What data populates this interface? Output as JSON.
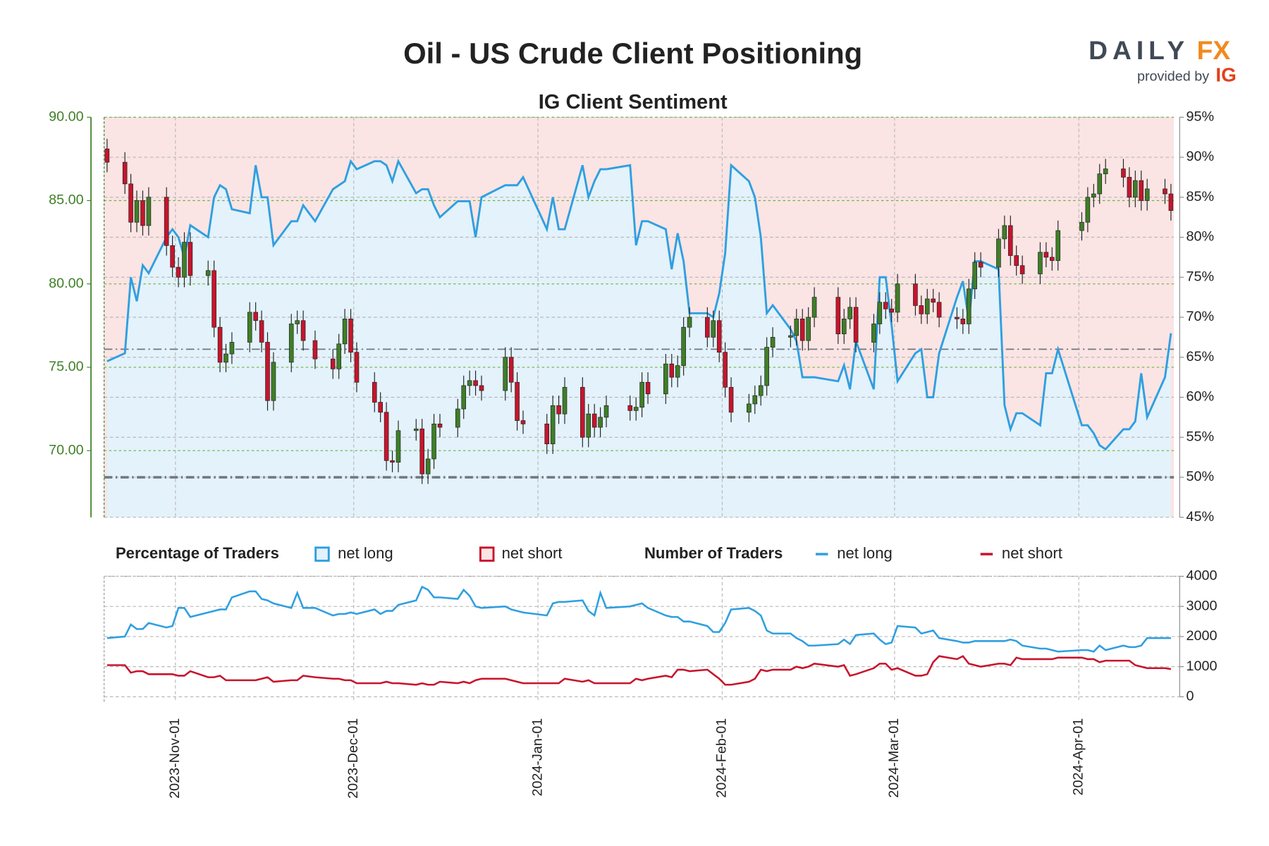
{
  "chart_data": [
    {
      "type": "candlestick",
      "title": "Oil - US Crude Client Positioning",
      "subtitle": "IG Client Sentiment",
      "logo": {
        "name": "DAILY",
        "accent": "FX",
        "tagline": "provided by",
        "brand": "IG"
      },
      "x": [
        "2023-10-20",
        "2023-10-23",
        "2023-10-24",
        "2023-10-25",
        "2023-10-26",
        "2023-10-27",
        "2023-10-30",
        "2023-10-31",
        "2023-11-01",
        "2023-11-02",
        "2023-11-03",
        "2023-11-06",
        "2023-11-07",
        "2023-11-08",
        "2023-11-09",
        "2023-11-10",
        "2023-11-13",
        "2023-11-14",
        "2023-11-15",
        "2023-11-16",
        "2023-11-17",
        "2023-11-20",
        "2023-11-21",
        "2023-11-22",
        "2023-11-24",
        "2023-11-27",
        "2023-11-28",
        "2023-11-29",
        "2023-11-30",
        "2023-12-01",
        "2023-12-04",
        "2023-12-05",
        "2023-12-06",
        "2023-12-07",
        "2023-12-08",
        "2023-12-11",
        "2023-12-12",
        "2023-12-13",
        "2023-12-14",
        "2023-12-15",
        "2023-12-18",
        "2023-12-19",
        "2023-12-20",
        "2023-12-21",
        "2023-12-22",
        "2023-12-26",
        "2023-12-27",
        "2023-12-28",
        "2023-12-29",
        "2024-01-02",
        "2024-01-03",
        "2024-01-04",
        "2024-01-05",
        "2024-01-08",
        "2024-01-09",
        "2024-01-10",
        "2024-01-11",
        "2024-01-12",
        "2024-01-16",
        "2024-01-17",
        "2024-01-18",
        "2024-01-19",
        "2024-01-22",
        "2024-01-23",
        "2024-01-24",
        "2024-01-25",
        "2024-01-26",
        "2024-01-29",
        "2024-01-30",
        "2024-01-31",
        "2024-02-01",
        "2024-02-02",
        "2024-02-05",
        "2024-02-06",
        "2024-02-07",
        "2024-02-08",
        "2024-02-09",
        "2024-02-12",
        "2024-02-13",
        "2024-02-14",
        "2024-02-15",
        "2024-02-16",
        "2024-02-20",
        "2024-02-21",
        "2024-02-22",
        "2024-02-23",
        "2024-02-26",
        "2024-02-27",
        "2024-02-28",
        "2024-02-29",
        "2024-03-01",
        "2024-03-04",
        "2024-03-05",
        "2024-03-06",
        "2024-03-07",
        "2024-03-08",
        "2024-03-11",
        "2024-03-12",
        "2024-03-13",
        "2024-03-14",
        "2024-03-15",
        "2024-03-18",
        "2024-03-19",
        "2024-03-20",
        "2024-03-21",
        "2024-03-22",
        "2024-03-25",
        "2024-03-26",
        "2024-03-27",
        "2024-03-28",
        "2024-04-01",
        "2024-04-02",
        "2024-04-03",
        "2024-04-04",
        "2024-04-05",
        "2024-04-08",
        "2024-04-09",
        "2024-04-10",
        "2024-04-11",
        "2024-04-12",
        "2024-04-15",
        "2024-04-16"
      ],
      "open": [
        88.1,
        87.3,
        86.0,
        83.7,
        85.0,
        83.5,
        85.2,
        82.3,
        81.0,
        80.4,
        82.5,
        80.5,
        80.8,
        77.4,
        75.3,
        75.8,
        76.5,
        78.3,
        77.8,
        76.5,
        73.0,
        75.3,
        77.6,
        77.8,
        76.6,
        75.5,
        74.9,
        76.4,
        77.9,
        75.9,
        74.1,
        72.9,
        72.3,
        69.4,
        69.3,
        71.2,
        71.3,
        68.6,
        69.5,
        71.6,
        71.4,
        72.5,
        73.9,
        74.2,
        73.9,
        73.6,
        75.6,
        74.1,
        71.8,
        71.6,
        70.4,
        72.7,
        72.2,
        73.8,
        70.8,
        72.2,
        71.4,
        72.0,
        72.7,
        72.4,
        72.6,
        74.1,
        73.4,
        75.2,
        74.4,
        75.1,
        77.4,
        78.0,
        76.8,
        77.8,
        75.9,
        73.8,
        72.3,
        72.8,
        73.3,
        73.9,
        76.2,
        76.8,
        76.9,
        77.9,
        76.6,
        78.0,
        79.2,
        77.0,
        77.9,
        78.6,
        76.5,
        77.6,
        78.9,
        78.5,
        78.3,
        80.0,
        78.7,
        78.2,
        79.1,
        78.9,
        78.0,
        77.9,
        77.6,
        79.7,
        81.3,
        81.0,
        82.7,
        83.5,
        81.7,
        81.1,
        80.6,
        81.9,
        81.6,
        81.4,
        83.2,
        83.7,
        85.2,
        85.4,
        86.6,
        86.9,
        86.4,
        85.2,
        86.2,
        85.0,
        85.7,
        85.4
      ],
      "high": [
        88.7,
        87.9,
        86.6,
        85.6,
        85.6,
        85.8,
        85.8,
        82.9,
        81.6,
        83.1,
        83.1,
        81.4,
        81.4,
        78.0,
        76.4,
        77.1,
        78.9,
        78.9,
        78.4,
        77.1,
        75.9,
        78.2,
        78.4,
        78.4,
        77.2,
        76.1,
        77.0,
        78.5,
        78.5,
        76.5,
        74.7,
        73.5,
        72.9,
        70.0,
        71.8,
        71.9,
        71.9,
        70.1,
        72.2,
        72.2,
        73.1,
        74.5,
        74.8,
        74.8,
        74.5,
        76.2,
        76.2,
        74.7,
        72.4,
        72.2,
        73.3,
        73.3,
        74.4,
        74.4,
        72.8,
        72.8,
        72.6,
        73.3,
        73.3,
        73.2,
        74.7,
        74.7,
        75.8,
        75.8,
        75.7,
        78.0,
        78.6,
        78.6,
        78.4,
        78.4,
        76.5,
        74.4,
        73.4,
        73.9,
        74.5,
        76.8,
        77.4,
        77.5,
        78.5,
        78.5,
        78.6,
        79.8,
        79.8,
        78.5,
        79.2,
        79.2,
        78.2,
        79.5,
        79.5,
        79.1,
        80.6,
        80.6,
        79.3,
        79.7,
        79.7,
        79.5,
        78.6,
        78.5,
        80.3,
        81.9,
        81.9,
        83.3,
        84.1,
        84.1,
        82.3,
        81.7,
        82.5,
        82.5,
        82.2,
        83.8,
        84.3,
        85.8,
        86.0,
        87.2,
        87.5,
        87.5,
        87.0,
        86.8,
        86.8,
        86.3,
        86.3,
        86.0
      ],
      "low": [
        86.7,
        85.4,
        83.1,
        83.1,
        82.9,
        82.9,
        81.7,
        80.4,
        79.8,
        79.8,
        79.9,
        79.9,
        76.8,
        74.7,
        74.7,
        75.2,
        75.9,
        77.2,
        75.9,
        72.4,
        72.4,
        74.7,
        77.0,
        76.0,
        74.9,
        74.3,
        74.3,
        75.8,
        75.3,
        73.5,
        72.3,
        71.7,
        68.8,
        68.7,
        68.7,
        70.6,
        68.0,
        68.0,
        68.9,
        70.8,
        70.8,
        71.9,
        73.3,
        73.3,
        73.0,
        73.0,
        73.5,
        71.2,
        71.0,
        69.8,
        69.8,
        71.6,
        71.6,
        70.2,
        70.2,
        70.8,
        70.8,
        71.4,
        71.8,
        71.8,
        72.0,
        72.8,
        72.8,
        73.8,
        73.8,
        74.5,
        76.8,
        76.2,
        76.2,
        75.3,
        73.2,
        71.7,
        71.7,
        72.2,
        72.7,
        73.3,
        75.6,
        76.2,
        76.3,
        76.0,
        76.0,
        77.4,
        76.4,
        76.4,
        77.3,
        75.9,
        75.9,
        77.0,
        77.9,
        77.7,
        77.7,
        78.1,
        77.6,
        77.6,
        78.3,
        77.4,
        77.3,
        77.0,
        77.0,
        79.1,
        80.4,
        80.4,
        82.1,
        81.1,
        80.5,
        80.0,
        80.0,
        81.0,
        80.8,
        80.8,
        82.6,
        83.1,
        84.6,
        84.8,
        86.0,
        85.8,
        84.6,
        84.6,
        84.4,
        84.4,
        84.8,
        83.8
      ],
      "close": [
        87.3,
        86.0,
        83.7,
        85.0,
        83.5,
        85.2,
        82.3,
        81.0,
        80.4,
        82.5,
        80.5,
        80.8,
        77.4,
        75.3,
        75.8,
        76.5,
        78.3,
        77.8,
        76.5,
        73.0,
        75.3,
        77.6,
        77.8,
        76.6,
        75.5,
        74.9,
        76.4,
        77.9,
        75.9,
        74.1,
        72.9,
        72.3,
        69.4,
        69.3,
        71.2,
        71.3,
        68.6,
        69.5,
        71.6,
        71.4,
        72.5,
        73.9,
        74.2,
        73.9,
        73.6,
        75.6,
        74.1,
        71.8,
        71.6,
        70.4,
        72.7,
        72.2,
        73.8,
        70.8,
        72.2,
        71.4,
        72.0,
        72.7,
        72.4,
        72.6,
        74.1,
        73.4,
        75.2,
        74.4,
        75.1,
        77.4,
        78.0,
        76.8,
        77.8,
        75.9,
        73.8,
        72.3,
        72.8,
        73.3,
        73.9,
        76.2,
        76.8,
        76.9,
        77.9,
        76.6,
        78.0,
        79.2,
        77.0,
        77.9,
        78.6,
        76.5,
        77.6,
        78.9,
        78.5,
        78.3,
        80.0,
        78.7,
        78.2,
        79.1,
        78.9,
        78.0,
        77.9,
        77.6,
        79.7,
        81.3,
        81.0,
        82.7,
        83.5,
        81.7,
        81.1,
        80.6,
        81.9,
        81.6,
        81.4,
        83.2,
        83.7,
        85.2,
        85.4,
        86.6,
        86.9,
        86.4,
        85.2,
        86.2,
        85.0,
        85.7,
        85.4,
        84.4
      ],
      "up_color": "#3f7f27",
      "down_color": "#c8142c",
      "series": [
        {
          "name": "net long",
          "color": "#2f9fe0",
          "fill": "#e3f2fb",
          "axis": "y2",
          "values": [
            64.5,
            65.5,
            75,
            72,
            76.5,
            75.5,
            80,
            81,
            80,
            77.5,
            81.5,
            80,
            85,
            86.5,
            86,
            83.5,
            83,
            89,
            85,
            85,
            79,
            82,
            82,
            84,
            82,
            86,
            86.5,
            87,
            89.5,
            88.5,
            89.5,
            89.5,
            89,
            87,
            89.5,
            85.5,
            86,
            86,
            84,
            82.5,
            84.5,
            84.5,
            84.5,
            80,
            85,
            86.5,
            86.5,
            86.5,
            87.5,
            81,
            85,
            81,
            81,
            89,
            85,
            87,
            88.5,
            88.5,
            89,
            79,
            82,
            82,
            81,
            76,
            80.5,
            77,
            70.5,
            70.5,
            70,
            73,
            78,
            89,
            87,
            85,
            80,
            70.5,
            71.5,
            68.5,
            67,
            62.5,
            62.5,
            62.5,
            62,
            64,
            61,
            67,
            61,
            75,
            75,
            69,
            62,
            65.5,
            66,
            60,
            60,
            65.5,
            72.5,
            74.5,
            69.5,
            77,
            77,
            76,
            59,
            56,
            58,
            58,
            56.5,
            63,
            63,
            66,
            56.5,
            56.5,
            55.5,
            54,
            53.5,
            56,
            56,
            57,
            63,
            57.5,
            62.5,
            68
          ]
        }
      ],
      "short_fill": {
        "name": "net short",
        "color": "#c8142c",
        "fill": "#fbe4e4"
      },
      "legend_title": "Percentage of Traders",
      "reference_lines": [
        {
          "value": 66,
          "axis": "y2",
          "width": 1.5
        },
        {
          "value": 50,
          "axis": "y2",
          "width": 3
        }
      ],
      "xlim": [
        "2023-10-20",
        "2024-04-17"
      ],
      "xticks": [
        {
          "value": "2023-11-01",
          "label": "2023-Nov-01"
        },
        {
          "value": "2023-12-01",
          "label": "2023-Dec-01"
        },
        {
          "value": "2024-01-01",
          "label": "2024-Jan-01"
        },
        {
          "value": "2024-02-01",
          "label": "2024-Feb-01"
        },
        {
          "value": "2024-03-01",
          "label": "2024-Mar-01"
        },
        {
          "value": "2024-04-01",
          "label": "2024-Apr-01"
        }
      ],
      "ylim": [
        66,
        90
      ],
      "yticks": [
        {
          "value": 70,
          "label": "70.00"
        },
        {
          "value": 75,
          "label": "75.00"
        },
        {
          "value": 80,
          "label": "80.00"
        },
        {
          "value": 85,
          "label": "85.00"
        },
        {
          "value": 90,
          "label": "90.00"
        }
      ],
      "y2lim": [
        45,
        95
      ],
      "y2ticks": [
        {
          "value": 45,
          "label": "45%"
        },
        {
          "value": 50,
          "label": "50%"
        },
        {
          "value": 55,
          "label": "55%"
        },
        {
          "value": 60,
          "label": "60%"
        },
        {
          "value": 65,
          "label": "65%"
        },
        {
          "value": 70,
          "label": "70%"
        },
        {
          "value": 75,
          "label": "75%"
        },
        {
          "value": 80,
          "label": "80%"
        },
        {
          "value": 85,
          "label": "85%"
        },
        {
          "value": 90,
          "label": "90%"
        },
        {
          "value": 95,
          "label": "95%"
        }
      ],
      "grid": true
    },
    {
      "type": "line",
      "legend_title": "Number of Traders",
      "series": [
        {
          "name": "net long",
          "color": "#2f9fe0",
          "values": [
            1950,
            2000,
            2400,
            2250,
            2250,
            2450,
            2300,
            2350,
            2950,
            2950,
            2650,
            2800,
            2850,
            2900,
            2900,
            3300,
            3500,
            3500,
            3250,
            3200,
            3100,
            2950,
            3450,
            2950,
            2950,
            2700,
            2750,
            2750,
            2800,
            2750,
            2900,
            2750,
            2850,
            2850,
            3050,
            3200,
            3650,
            3550,
            3300,
            3300,
            3250,
            3550,
            3350,
            3000,
            2950,
            3000,
            2900,
            2850,
            2800,
            2700,
            3100,
            3150,
            3150,
            3200,
            2850,
            2700,
            3450,
            2950,
            3000,
            3050,
            3100,
            2950,
            2700,
            2650,
            2650,
            2500,
            2500,
            2350,
            2150,
            2150,
            2450,
            2900,
            2950,
            2850,
            2700,
            2200,
            2100,
            2100,
            1950,
            1850,
            1700,
            1700,
            1750,
            1900,
            1750,
            2050,
            2100,
            1900,
            1750,
            1800,
            2350,
            2300,
            2100,
            2150,
            2200,
            1950,
            1850,
            1800,
            1800,
            1850,
            1850,
            1850,
            1850,
            1900,
            1850,
            1700,
            1600,
            1600,
            1550,
            1500,
            1550,
            1550,
            1500,
            1700,
            1550,
            1700,
            1650,
            1650,
            1700,
            1950,
            1950,
            1950
          ]
        },
        {
          "name": "net short",
          "color": "#c8142c",
          "values": [
            1050,
            1050,
            800,
            850,
            850,
            750,
            750,
            750,
            700,
            700,
            850,
            650,
            650,
            700,
            550,
            550,
            550,
            550,
            600,
            650,
            500,
            550,
            550,
            700,
            650,
            600,
            600,
            550,
            550,
            450,
            450,
            450,
            500,
            450,
            450,
            400,
            450,
            400,
            400,
            500,
            450,
            500,
            450,
            550,
            600,
            600,
            550,
            500,
            450,
            450,
            450,
            450,
            600,
            500,
            550,
            450,
            450,
            450,
            450,
            600,
            550,
            600,
            700,
            650,
            900,
            900,
            850,
            900,
            750,
            600,
            400,
            400,
            500,
            600,
            900,
            850,
            900,
            900,
            1000,
            950,
            1000,
            1100,
            1000,
            1050,
            700,
            750,
            950,
            1100,
            1100,
            900,
            950,
            700,
            700,
            750,
            1150,
            1350,
            1250,
            1350,
            1100,
            1050,
            1000,
            1100,
            1100,
            1050,
            1300,
            1250,
            1250,
            1250,
            1250,
            1300,
            1300,
            1250,
            1250,
            1150,
            1200,
            1200,
            1200,
            1050,
            1000,
            950,
            950,
            920
          ]
        }
      ],
      "ylim": [
        0,
        4000
      ],
      "yticks": [
        0,
        1000,
        2000,
        3000,
        4000
      ],
      "grid": true
    }
  ]
}
